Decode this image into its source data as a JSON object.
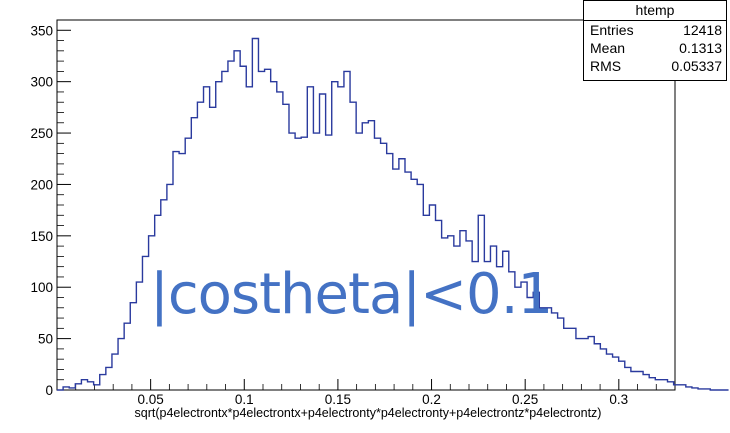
{
  "stats": {
    "title": "htemp",
    "rows": [
      {
        "label": "Entries",
        "value": "12418"
      },
      {
        "label": "Mean",
        "value": "0.1313"
      },
      {
        "label": "RMS",
        "value": "0.05337"
      }
    ]
  },
  "overlay_text": "|costheta|<0.1",
  "chart_data": {
    "type": "bar",
    "title": "",
    "xlabel": "sqrt(p4electrontx*p4electrontx+p4electronty*p4electronty+p4electrontz*p4electrontz)",
    "ylabel": "",
    "xlim": [
      0,
      0.33
    ],
    "ylim": [
      0,
      360
    ],
    "xticks": [
      0.05,
      0.1,
      0.15,
      0.2,
      0.25,
      0.3
    ],
    "xtick_labels": [
      "0.05",
      "0.1",
      "0.15",
      "0.2",
      "0.25",
      "0.3"
    ],
    "yticks": [
      0,
      50,
      100,
      150,
      200,
      250,
      300,
      350
    ],
    "ytick_labels": [
      "0",
      "50",
      "100",
      "150",
      "200",
      "250",
      "300",
      "350"
    ],
    "bin_width": 0.00326,
    "x_start": 0,
    "values": [
      0,
      3,
      2,
      6,
      10,
      8,
      5,
      15,
      22,
      35,
      50,
      65,
      85,
      105,
      130,
      150,
      170,
      185,
      200,
      232,
      230,
      245,
      265,
      280,
      295,
      275,
      300,
      310,
      320,
      330,
      315,
      295,
      342,
      310,
      312,
      300,
      290,
      278,
      250,
      245,
      246,
      295,
      250,
      288,
      248,
      300,
      295,
      310,
      280,
      250,
      260,
      262,
      245,
      240,
      230,
      215,
      225,
      212,
      205,
      200,
      170,
      180,
      165,
      148,
      150,
      140,
      155,
      145,
      125,
      170,
      125,
      140,
      120,
      135,
      115,
      100,
      105,
      90,
      95,
      80,
      80,
      75,
      70,
      60,
      60,
      50,
      50,
      52,
      45,
      40,
      35,
      32,
      28,
      22,
      18,
      18,
      15,
      12,
      10,
      10,
      8,
      5,
      5,
      3,
      2,
      1,
      1,
      0,
      0,
      0
    ]
  }
}
